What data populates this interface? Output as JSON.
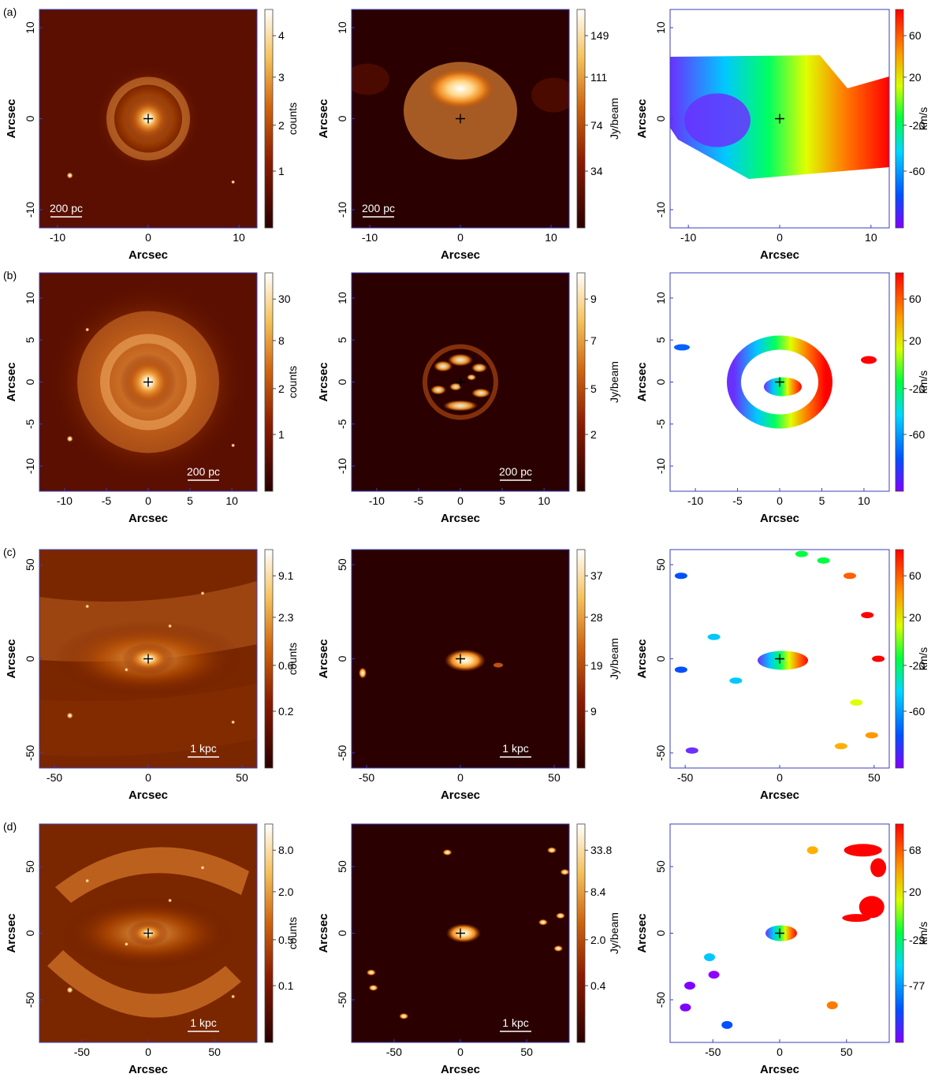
{
  "figure": {
    "axis_label": "Arcsec",
    "rows": [
      {
        "row_label": "(a)",
        "ticks": [
          "-10",
          "0",
          "10"
        ],
        "panels": [
          {
            "kind": "optical",
            "cbar_label": "counts",
            "cbar_ticks": [
              "4",
              "3",
              "2",
              "1"
            ],
            "scalebar": "200 pc"
          },
          {
            "kind": "co",
            "cbar_label": "Jy/beam",
            "cbar_ticks": [
              "149",
              "111",
              "74",
              "34"
            ],
            "scalebar": "200 pc"
          },
          {
            "kind": "vel",
            "cbar_label": "km/s",
            "cbar_ticks": [
              "60",
              "20",
              "-20",
              "-60"
            ],
            "scalebar": ""
          }
        ]
      },
      {
        "row_label": "(b)",
        "ticks": [
          "-10",
          "-5",
          "0",
          "5",
          "10"
        ],
        "panels": [
          {
            "kind": "optical",
            "cbar_label": "counts",
            "cbar_ticks": [
              "30",
              "8",
              "2",
              "1"
            ],
            "scalebar": "200 pc"
          },
          {
            "kind": "co",
            "cbar_label": "Jy/beam",
            "cbar_ticks": [
              "9",
              "7",
              "5",
              "2"
            ],
            "scalebar": "200 pc"
          },
          {
            "kind": "vel",
            "cbar_label": "km/s",
            "cbar_ticks": [
              "60",
              "20",
              "-20",
              "-60"
            ],
            "scalebar": ""
          }
        ]
      },
      {
        "row_label": "(c)",
        "ticks": [
          "-50",
          "0",
          "50"
        ],
        "panels": [
          {
            "kind": "optical",
            "cbar_label": "counts",
            "cbar_ticks": [
              "9.1",
              "2.3",
              "0.6",
              "0.2"
            ],
            "scalebar": "1 kpc"
          },
          {
            "kind": "co",
            "cbar_label": "Jy/beam",
            "cbar_ticks": [
              "37",
              "28",
              "19",
              "9"
            ],
            "scalebar": "1 kpc"
          },
          {
            "kind": "vel",
            "cbar_label": "km/s",
            "cbar_ticks": [
              "60",
              "20",
              "-20",
              "-60"
            ],
            "scalebar": ""
          }
        ]
      },
      {
        "row_label": "(d)",
        "ticks": [
          "-50",
          "0",
          "50"
        ],
        "panels": [
          {
            "kind": "optical",
            "cbar_label": "counts",
            "cbar_ticks": [
              "8.0",
              "2.0",
              "0.5",
              "0.1"
            ],
            "scalebar": "1 kpc"
          },
          {
            "kind": "co",
            "cbar_label": "Jy/beam",
            "cbar_ticks": [
              "33.8",
              "8.4",
              "2.0",
              "0.4"
            ],
            "scalebar": "1 kpc"
          },
          {
            "kind": "vel",
            "cbar_label": "km/s",
            "cbar_ticks": [
              "68",
              "20",
              "-29",
              "-77"
            ],
            "scalebar": ""
          }
        ]
      }
    ],
    "colors": {
      "frame": "#3b3fbf",
      "heat_dark": "#2a0000",
      "heat_mid": "#b34700",
      "heat_bright": "#ffffff"
    }
  }
}
